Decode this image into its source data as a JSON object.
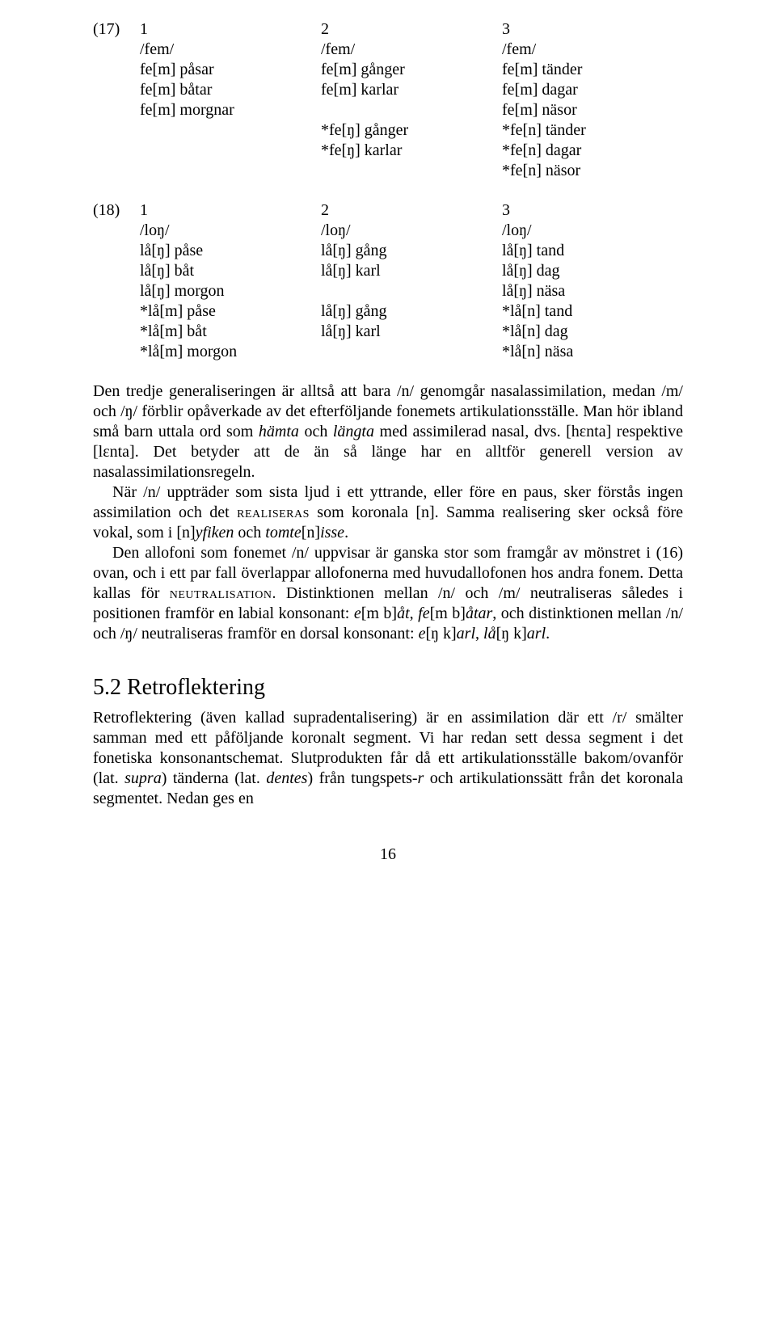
{
  "ex17": {
    "num": "(17)",
    "header": {
      "c1": "1",
      "c2": "2",
      "c3": "3"
    },
    "rows": [
      {
        "c1": "/fem/",
        "c2": "/fem/",
        "c3": "/fem/"
      },
      {
        "c1": "fe[m] påsar",
        "c2": "fe[m] gånger",
        "c3": "fe[m] tänder"
      },
      {
        "c1": "fe[m] båtar",
        "c2": "fe[m] karlar",
        "c3": "fe[m] dagar"
      },
      {
        "c1": "fe[m] morgnar",
        "c2": "",
        "c3": "fe[m] näsor"
      },
      {
        "c1": "",
        "c2": "*fe[ŋ] gånger",
        "c3": "*fe[n] tänder"
      },
      {
        "c1": "",
        "c2": "*fe[ŋ] karlar",
        "c3": "*fe[n] dagar"
      },
      {
        "c1": "",
        "c2": "",
        "c3": "*fe[n] näsor"
      }
    ]
  },
  "ex18": {
    "num": "(18)",
    "header": {
      "c1": "1",
      "c2": "2",
      "c3": "3"
    },
    "rows": [
      {
        "c1": "/loŋ/",
        "c2": "/loŋ/",
        "c3": "/loŋ/"
      },
      {
        "c1": "lå[ŋ] påse",
        "c2": "lå[ŋ] gång",
        "c3": "lå[ŋ] tand"
      },
      {
        "c1": "lå[ŋ] båt",
        "c2": "lå[ŋ] karl",
        "c3": "lå[ŋ] dag"
      },
      {
        "c1": "lå[ŋ] morgon",
        "c2": "",
        "c3": "lå[ŋ] näsa"
      },
      {
        "c1": "*lå[m] påse",
        "c2": "lå[ŋ] gång",
        "c3": "*lå[n] tand"
      },
      {
        "c1": "*lå[m] båt",
        "c2": "lå[ŋ] karl",
        "c3": "*lå[n] dag"
      },
      {
        "c1": "*lå[m] morgon",
        "c2": "",
        "c3": "*lå[n] näsa"
      }
    ]
  },
  "body": {
    "p1a": "Den tredje generaliseringen är alltså att bara /n/ genomgår nasalassimila­tion, medan /m/ och /ŋ/ förblir opåverkade av det efterföljande fonemets artikulationsställe. Man hör ibland små barn uttala ord som ",
    "p1_i1": "hämta",
    "p1b": " och ",
    "p1_i2": "längta",
    "p1c": " med assimilerad nasal, dvs. [hɛnta] respektive [lɛnta]. Det betyder att de än så länge har en alltför generell version av nasalassimilationsregeln.",
    "p2a": "När /n/ uppträder som sista ljud i ett yttrande, eller före en paus, sker förstås ingen assimilation och det ",
    "p2_sc1": "realiseras",
    "p2b": " som koronala [n]. Samma realisering sker också före vokal, som i [n]",
    "p2_i1": "yfiken",
    "p2c": " och ",
    "p2_i2": "tomte",
    "p2d": "[n]",
    "p2_i3": "isse",
    "p2e": ".",
    "p3a": "Den allofoni som fonemet /n/ uppvisar är ganska stor som framgår av mönstret i (16) ovan, och i ett par fall överlappar allofonerna med huvud­allofonen hos andra fonem. Detta kallas för ",
    "p3_sc1": "neutralisation",
    "p3b": ". Distink­tionen mellan /n/ och /m/ neutraliseras således i positionen framför en labial konsonant: ",
    "p3_i1": "e",
    "p3c": "[m b]",
    "p3_i2": "åt",
    "p3d": ", ",
    "p3_i3": "fe",
    "p3e": "[m b]",
    "p3_i4": "åtar",
    "p3f": ", och distinktionen mellan /n/ och /ŋ/ neutraliseras framför en dorsal konsonant: ",
    "p3_i5": "e",
    "p3g": "[ŋ k]",
    "p3_i6": "arl",
    "p3h": ", ",
    "p3_i7": "lå",
    "p3i": "[ŋ k]",
    "p3_i8": "arl",
    "p3j": "."
  },
  "section": {
    "title": "5.2 Retroflektering"
  },
  "retro": {
    "p1a": "Retroflektering (även kallad supradentalisering) är en assimilation där ett /r/ smälter samman med ett påföljande koronalt segment. Vi har redan sett dessa segment i det fonetiska konsonantschemat. Slutprodukten får då ett artikulationsställe bakom/ovanför (lat. ",
    "p1_i1": "supra",
    "p1b": ") tänderna (lat. ",
    "p1_i2": "dentes",
    "p1c": ") från tungspets-",
    "p1_i3": "r",
    "p1d": " och artikulationssätt från det koronala segmentet. Nedan ges en"
  },
  "pagenum": "16"
}
